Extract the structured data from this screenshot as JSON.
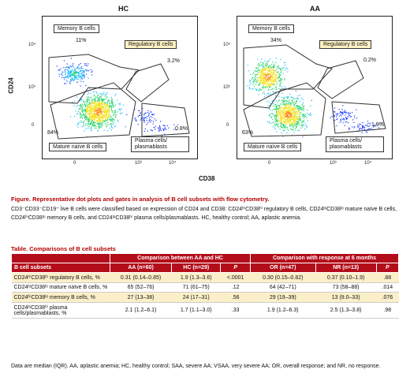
{
  "panels": [
    {
      "title": "HC",
      "gates": {
        "memory": "Memory B cells",
        "regulatory": "Regulatory B cells",
        "mature": "Mature naïve B cells",
        "plasma": "Plasma cells/ plasmablasts"
      },
      "pct": {
        "memory": "11%",
        "regulatory": "3.2%",
        "mature": "84%",
        "plasma": "0.8%"
      }
    },
    {
      "title": "AA",
      "gates": {
        "memory": "Memory B cells",
        "regulatory": "Regulatory B cells",
        "mature": "Mature naïve B cells",
        "plasma": "Plasma cells/ plasmablasts"
      },
      "pct": {
        "memory": "34%",
        "regulatory": "0.2%",
        "mature": "63%",
        "plasma": "1.9%"
      }
    }
  ],
  "axes": {
    "y_label": "CD24",
    "x_label": "CD38",
    "y_ticks": [
      "10⁴",
      "10³",
      "0"
    ],
    "x_ticks": [
      "0",
      "10³",
      "10⁴"
    ]
  },
  "figure": {
    "title": "Figure. Representative dot plots and gates in analysis of B cell subsets with flow cytometry.",
    "description": "CD3⁻CD33⁻CD19⁺ live B cells were classified based on expression of CD24 and CD38: CD24ʰⁱCD38ʰⁱ regulatory B cells, CD24ˡᵒCD38ˡᵒ mature naïve B cells, CD24ʰⁱCD38ˡᵒ memory B cells, and CD24ˡᵒCD38ʰⁱ plasma cells/plasmablasts. HC, healthy control; AA, aplastic anemia."
  },
  "table": {
    "title": "Table. Comparisons of B cell subsets",
    "group_headers": [
      "Comparison between AA and HC",
      "Comparison with response at 6 months"
    ],
    "row_header": "B cell subsets",
    "columns": [
      "AA (n=60)",
      "HC (n=29)",
      "P",
      "OR (n=47)",
      "NR (n=13)",
      "P"
    ],
    "rows": [
      {
        "label": "CD24ʰⁱCD38ʰⁱ regulatory B cells, %",
        "values": [
          "0.31 (0.14–0.85)",
          "1.9 (1.3–3.6)",
          "<.0001",
          "0.30 (0.15–0.82)",
          "0.37 (0.10–1.9)",
          ".88"
        ]
      },
      {
        "label": "CD24ˡᵒCD38ˡᵒ mature naïve B cells, %",
        "values": [
          "65 (52–76)",
          "71 (61–75)",
          ".12",
          "64 (42–71)",
          "73 (58–88)",
          ".014"
        ]
      },
      {
        "label": "CD24ʰⁱCD38ˡᵒ memory B cells, %",
        "values": [
          "27 (13–38)",
          "24 (17–31)",
          ".56",
          "29 (19–39)",
          "13 (9.0–33)",
          ".076"
        ]
      },
      {
        "label": "CD24ˡᵒCD38ʰⁱ plasma cells/plasmablasts, %",
        "values": [
          "2.1 (1.2–6.1)",
          "1.7 (1.1–3.0)",
          ".33",
          "1.9 (1.2–6.3)",
          "2.5 (1.3–3.8)",
          ".98"
        ]
      }
    ],
    "notes": "Data are median (IQR). AA, aplastic anemia; HC, healthy control; SAA, severe AA; VSAA, very severe AA; OR, overall response; and NR, no response."
  },
  "colors": {
    "accent": "#b40d1a",
    "highlight": "#fbefc9",
    "title_red": "#b30000"
  }
}
